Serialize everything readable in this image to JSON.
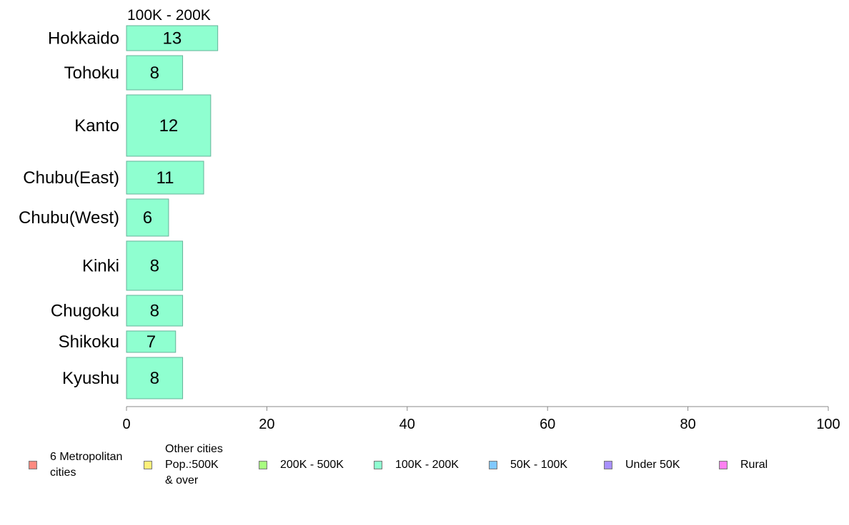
{
  "chart_data": {
    "type": "bar",
    "orientation": "horizontal",
    "series_header": "100K - 200K",
    "categories": [
      "Hokkaido",
      "Tohoku",
      "Kanto",
      "Chubu(East)",
      "Chubu(West)",
      "Kinki",
      "Chugoku",
      "Shikoku",
      "Kyushu"
    ],
    "series": [
      {
        "name": "100K - 200K",
        "values": [
          13,
          8,
          12,
          11,
          6,
          8,
          8,
          7,
          8
        ],
        "color": "#8fffd0"
      }
    ],
    "xlim": [
      0,
      100
    ],
    "xticks": [
      "0",
      "20",
      "40",
      "60",
      "80",
      "100"
    ],
    "grid": false,
    "legend_position": "bottom",
    "legend": [
      {
        "label": "6 Metropolitan\n cities",
        "color": "#ff8a80"
      },
      {
        "label": "Other cities\nPop.:500K\n & over",
        "color": "#fff07a"
      },
      {
        "label": "200K - 500K",
        "color": "#a8ff80"
      },
      {
        "label": "100K - 200K",
        "color": "#8fffd0"
      },
      {
        "label": "50K - 100K",
        "color": "#80c8ff"
      },
      {
        "label": "Under 50K",
        "color": "#a890ff"
      },
      {
        "label": "Rural",
        "color": "#ff80f0"
      }
    ]
  }
}
